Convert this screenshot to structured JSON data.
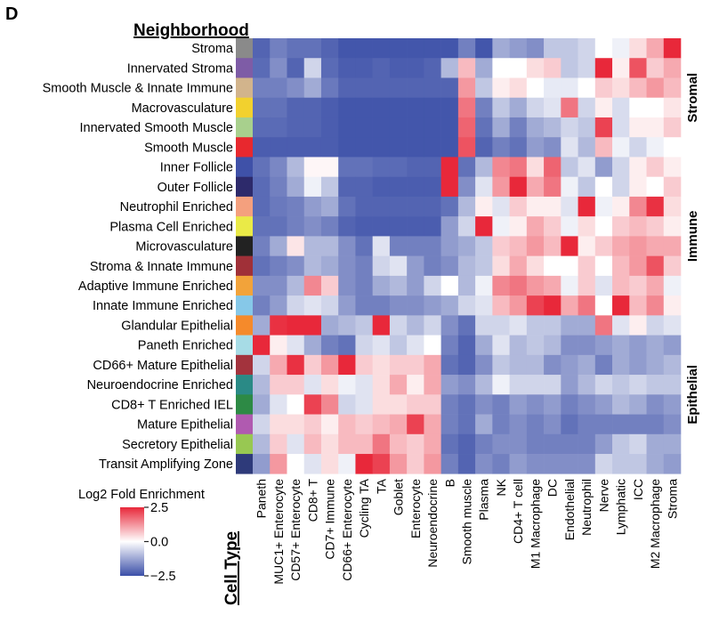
{
  "chart_data": {
    "type": "heatmap",
    "panel_label": "D",
    "row_header": "Neighborhood",
    "col_header": "Cell Type",
    "rows": [
      "Stroma",
      "Innervated Stroma",
      "Smooth Muscle & Innate Immune",
      "Macrovasculature",
      "Innervated Smooth Muscle",
      "Smooth Muscle",
      "Inner Follicle",
      "Outer Follicle",
      "Neutrophil Enriched",
      "Plasma Cell Enriched",
      "Microvasculature",
      "Stroma & Innate Immune",
      "Adaptive Immune Enriched",
      "Innate Immune Enriched",
      "Glandular Epithelial",
      "Paneth Enriched",
      "CD66+ Mature Epithelial",
      "Neuroendocrine Enriched",
      "CD8+ T Enriched IEL",
      "Mature Epithelial",
      "Secretory Epithelial",
      "Transit Amplifying Zone"
    ],
    "row_colors": [
      "#8a8a8a",
      "#7e5ca6",
      "#d2b48c",
      "#f2d12e",
      "#a8d08d",
      "#e8282e",
      "#3f51a8",
      "#2d2a6b",
      "#f4a07e",
      "#eaea47",
      "#222222",
      "#a03038",
      "#f2a33a",
      "#86c8e8",
      "#f58a2b",
      "#a7dce6",
      "#a3333d",
      "#2a8a86",
      "#2d8a45",
      "#b05ab0",
      "#98c852",
      "#2e3a7a"
    ],
    "columns": [
      "Paneth",
      "MUC1+ Enterocyte",
      "CD57+ Enterocyte",
      "CD8+ T",
      "CD7+ Immune",
      "CD66+ Enterocyte",
      "Cycling TA",
      "TA",
      "Goblet",
      "Enterocyte",
      "Neuroendocrine",
      "B",
      "Smooth muscle",
      "Plasma",
      "NK",
      "CD4+ T cell",
      "M1 Macrophage",
      "DC",
      "Endothelial",
      "Neutrophil",
      "Nerve",
      "Lymphatic",
      "ICC",
      "M2 Macrophage",
      "Stroma"
    ],
    "groups": [
      {
        "label": "Stromal",
        "first_row": 0,
        "last_row": 5
      },
      {
        "label": "Immune",
        "first_row": 6,
        "last_row": 13
      },
      {
        "label": "Epithelial",
        "first_row": 14,
        "last_row": 21
      }
    ],
    "values": [
      [
        -2.2,
        -1.8,
        -2.0,
        -2.0,
        -2.2,
        -2.4,
        -2.4,
        -2.4,
        -2.4,
        -2.4,
        -2.4,
        -2.4,
        -1.8,
        -2.4,
        -1.2,
        -1.4,
        -1.6,
        -0.8,
        -0.8,
        -0.6,
        0.0,
        -0.2,
        0.4,
        1.0,
        2.8
      ],
      [
        -2.1,
        -1.6,
        -2.2,
        -0.6,
        -2.1,
        -2.3,
        -2.3,
        -2.2,
        -2.3,
        -2.3,
        -2.2,
        -1.0,
        0.8,
        -1.2,
        0.0,
        0.0,
        0.4,
        0.6,
        -0.8,
        -0.6,
        2.8,
        0.2,
        2.0,
        0.6,
        1.0
      ],
      [
        -1.8,
        -1.8,
        -1.6,
        -1.2,
        -1.9,
        -2.2,
        -2.2,
        -2.2,
        -2.2,
        -2.2,
        -2.2,
        -2.2,
        1.2,
        -0.8,
        0.2,
        0.4,
        0.0,
        -0.3,
        -0.3,
        0.0,
        0.6,
        0.4,
        0.8,
        1.2,
        0.8
      ],
      [
        -2.0,
        -2.0,
        -2.2,
        -2.2,
        -2.3,
        -2.4,
        -2.4,
        -2.4,
        -2.4,
        -2.4,
        -2.4,
        -2.4,
        1.6,
        -1.8,
        -0.8,
        -1.2,
        -0.6,
        -0.4,
        1.6,
        -0.6,
        0.2,
        -0.5,
        0.0,
        0.0,
        0.3
      ],
      [
        -2.1,
        -2.1,
        -2.2,
        -2.2,
        -2.3,
        -2.4,
        -2.4,
        -2.4,
        -2.4,
        -2.4,
        -2.4,
        -2.4,
        1.8,
        -2.0,
        -1.2,
        -1.8,
        -1.2,
        -1.0,
        -0.6,
        -0.8,
        2.2,
        -0.5,
        0.2,
        0.2,
        0.6
      ],
      [
        -2.3,
        -2.3,
        -2.3,
        -2.3,
        -2.3,
        -2.4,
        -2.4,
        -2.4,
        -2.4,
        -2.4,
        -2.4,
        -2.4,
        2.0,
        -2.2,
        -1.8,
        -2.0,
        -1.4,
        -1.6,
        -0.4,
        -1.0,
        0.8,
        -0.2,
        -0.6,
        -0.2,
        0.0
      ],
      [
        -2.0,
        -1.7,
        -1.0,
        0.1,
        0.1,
        -2.0,
        -2.0,
        -2.1,
        -2.1,
        -2.2,
        -2.2,
        2.6,
        -2.0,
        -1.0,
        1.4,
        1.6,
        0.4,
        1.8,
        -0.8,
        -0.4,
        -1.4,
        -0.6,
        0.2,
        0.6,
        0.2
      ],
      [
        -2.1,
        -1.8,
        -1.2,
        -0.2,
        -0.8,
        -2.2,
        -2.2,
        -2.3,
        -2.3,
        -2.3,
        -2.3,
        2.8,
        -1.6,
        -0.4,
        1.2,
        2.8,
        1.0,
        1.6,
        -0.2,
        -0.8,
        0.0,
        -0.6,
        0.2,
        0.0,
        0.6
      ],
      [
        -2.1,
        -1.9,
        -1.8,
        -1.4,
        -1.2,
        -2.0,
        -2.2,
        -2.2,
        -2.2,
        -2.2,
        -2.2,
        -2.0,
        -1.0,
        0.2,
        -0.4,
        0.6,
        0.2,
        0.2,
        -0.4,
        2.6,
        -0.2,
        0.2,
        1.4,
        2.4,
        0.4
      ],
      [
        -2.0,
        -2.0,
        -1.8,
        -1.6,
        -1.8,
        -2.2,
        -2.3,
        -2.3,
        -2.3,
        -2.3,
        -2.3,
        -1.4,
        -0.6,
        2.6,
        -0.2,
        0.2,
        1.0,
        0.6,
        -0.2,
        0.4,
        0.0,
        0.6,
        0.8,
        0.6,
        0.2
      ],
      [
        -1.8,
        -1.2,
        0.3,
        -1.0,
        -1.0,
        -1.6,
        -2.0,
        -0.4,
        -1.8,
        -1.8,
        -1.8,
        -1.4,
        -1.2,
        -0.8,
        0.6,
        0.8,
        1.2,
        0.8,
        2.6,
        0.2,
        0.6,
        1.0,
        1.2,
        1.0,
        1.0
      ],
      [
        -2.0,
        -1.8,
        -1.6,
        -1.0,
        -1.2,
        -1.6,
        -1.8,
        -0.6,
        -0.4,
        -1.4,
        -1.8,
        -1.6,
        -1.0,
        -0.8,
        0.4,
        1.0,
        0.4,
        0.0,
        0.0,
        0.6,
        0.0,
        0.8,
        1.2,
        2.0,
        0.6
      ],
      [
        -1.6,
        -1.6,
        -1.0,
        1.4,
        0.6,
        -1.6,
        -1.8,
        -1.2,
        -1.0,
        -1.4,
        -0.6,
        0.0,
        -1.0,
        -0.2,
        1.4,
        1.6,
        1.2,
        1.0,
        -0.2,
        0.6,
        -0.4,
        0.8,
        0.6,
        1.0,
        -0.2
      ],
      [
        -1.8,
        -1.4,
        -0.6,
        -0.4,
        -0.6,
        -1.4,
        -1.8,
        -1.8,
        -1.6,
        -1.6,
        -1.4,
        -1.2,
        -0.6,
        -0.4,
        0.8,
        1.2,
        2.2,
        2.6,
        1.0,
        1.6,
        0.0,
        2.6,
        0.8,
        1.4,
        0.2
      ],
      [
        -1.2,
        2.4,
        2.6,
        2.6,
        -1.2,
        -1.0,
        -0.8,
        2.6,
        -0.6,
        -1.0,
        -0.6,
        -1.6,
        -2.0,
        -0.6,
        -0.6,
        -0.4,
        -0.8,
        -0.8,
        -1.2,
        -1.2,
        1.6,
        -0.4,
        0.2,
        -0.6,
        -0.4
      ],
      [
        2.6,
        0.2,
        -0.4,
        -1.2,
        -1.8,
        -2.0,
        -0.6,
        -0.4,
        -0.8,
        -0.4,
        0.0,
        -1.8,
        -2.2,
        -1.2,
        -0.4,
        -1.0,
        -0.8,
        -1.0,
        -1.6,
        -1.6,
        -1.4,
        -1.2,
        -1.4,
        -1.2,
        -1.4
      ],
      [
        -0.6,
        1.0,
        2.4,
        0.6,
        1.2,
        2.6,
        0.6,
        0.4,
        0.6,
        0.6,
        1.0,
        -2.0,
        -2.2,
        -1.6,
        -0.8,
        -1.0,
        -1.0,
        -1.6,
        -1.4,
        -1.2,
        -1.8,
        -1.2,
        -1.4,
        -1.2,
        -1.0
      ],
      [
        -1.0,
        0.6,
        0.6,
        -0.4,
        0.4,
        -0.2,
        -0.4,
        0.4,
        1.0,
        0.2,
        1.0,
        -1.4,
        -1.6,
        -1.0,
        -0.2,
        -0.6,
        -0.6,
        -0.6,
        -1.4,
        -1.0,
        -0.6,
        -0.8,
        -0.6,
        -0.8,
        -0.8
      ],
      [
        -1.2,
        -0.4,
        0.0,
        2.2,
        1.4,
        -0.6,
        -0.4,
        0.4,
        0.4,
        0.6,
        0.6,
        -1.8,
        -2.0,
        -1.6,
        -1.8,
        -1.4,
        -1.6,
        -1.4,
        -1.8,
        -1.6,
        -1.4,
        -1.0,
        -1.2,
        -1.6,
        -1.4
      ],
      [
        -0.6,
        0.4,
        0.4,
        0.6,
        0.2,
        0.8,
        0.6,
        0.8,
        1.0,
        2.2,
        1.0,
        -1.8,
        -2.0,
        -1.2,
        -1.8,
        -1.6,
        -1.8,
        -1.6,
        -2.0,
        -1.8,
        -1.8,
        -1.8,
        -1.8,
        -1.8,
        -1.6
      ],
      [
        -1.0,
        0.6,
        -0.4,
        0.8,
        0.4,
        0.8,
        0.8,
        1.6,
        0.8,
        0.6,
        1.0,
        -2.0,
        -2.2,
        -1.8,
        -1.6,
        -1.6,
        -1.8,
        -1.8,
        -1.8,
        -1.8,
        -1.4,
        -0.8,
        -0.6,
        -1.2,
        -1.2
      ],
      [
        -1.4,
        1.2,
        0.0,
        -0.4,
        0.4,
        -0.2,
        2.6,
        2.2,
        1.2,
        0.6,
        1.2,
        -1.8,
        -2.2,
        -1.6,
        -1.8,
        -1.4,
        -1.6,
        -1.6,
        -1.6,
        -1.6,
        -0.6,
        -0.8,
        -0.8,
        -1.2,
        -1.4
      ]
    ],
    "colorbar": {
      "title": "Log2 Fold Enrichment",
      "min": -2.5,
      "max": 2.5,
      "ticks": [
        2.5,
        0.0,
        -2.5
      ],
      "tick_labels": [
        "2.5",
        "0.0",
        "−2.5"
      ],
      "colors": {
        "low": "#3b4fa8",
        "mid": "#ffffff",
        "high": "#e8283a"
      }
    }
  }
}
